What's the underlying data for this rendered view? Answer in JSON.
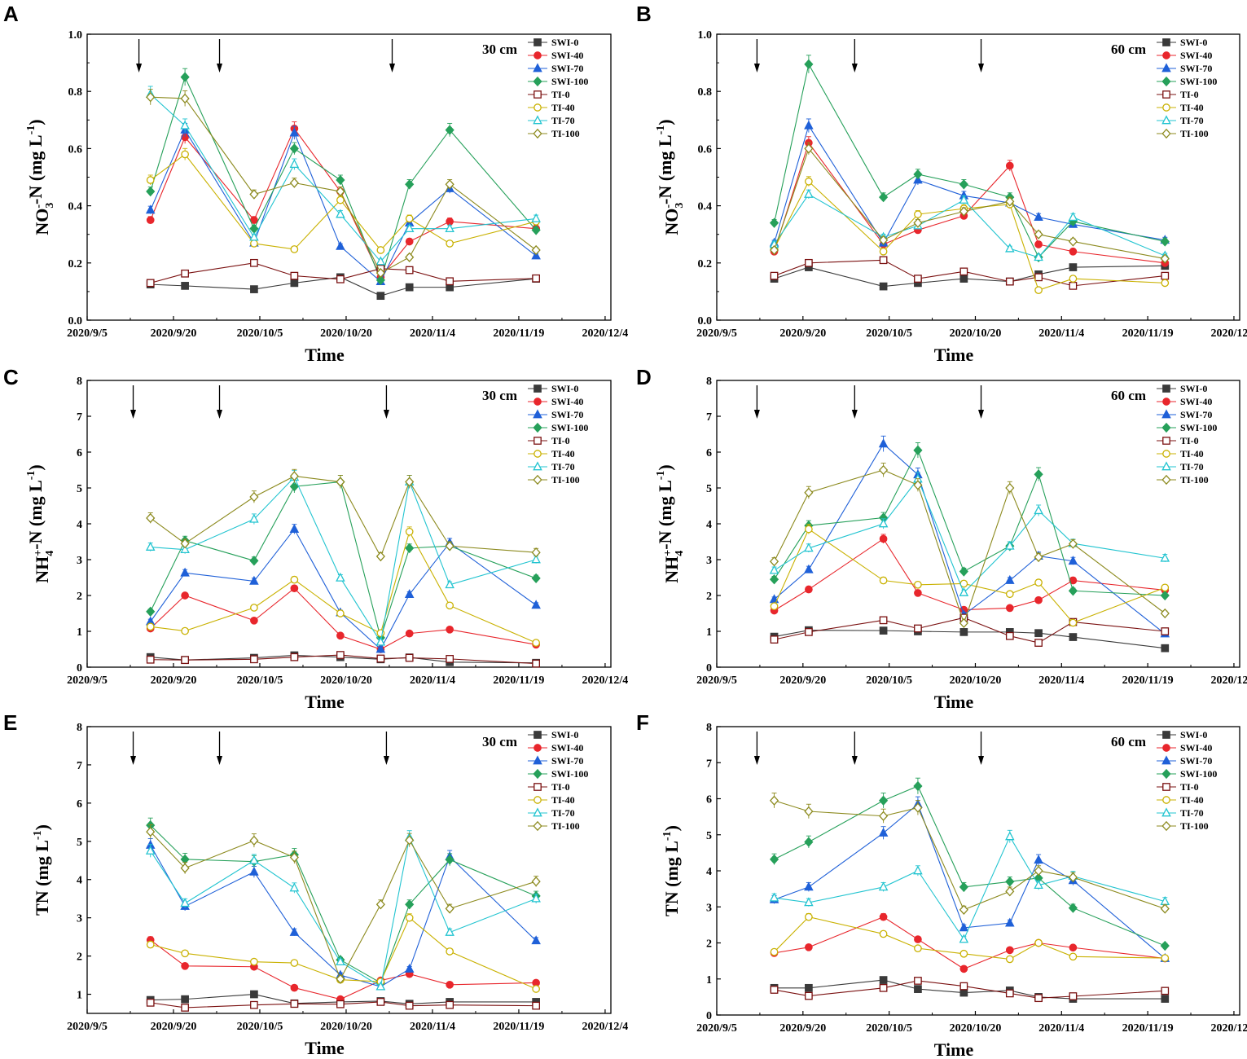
{
  "figure": {
    "x_ticks": [
      "2020/9/5",
      "2020/9/20",
      "2020/10/5",
      "2020/10/20",
      "2020/11/4",
      "2020/11/19",
      "2020/12/4"
    ]
  },
  "chart_data": [
    {
      "panel": "A",
      "type": "line",
      "depth_label": "30 cm",
      "xlabel": "Time",
      "ylabel": {
        "pre": "NO",
        "sub": "3",
        "sup": "-",
        "post": "-N (mg L",
        "unit_sup": "-1",
        "close": ")"
      },
      "ylim": [
        0,
        1.0
      ],
      "yticks": [
        0.0,
        0.2,
        0.4,
        0.6,
        0.8,
        1.0
      ],
      "xdays": [
        11,
        17,
        29,
        36,
        44,
        51,
        56,
        63,
        78
      ],
      "arrows_day": [
        9,
        23,
        53
      ],
      "series": [
        {
          "name": "SWI-0",
          "values": [
            0.125,
            0.12,
            0.108,
            0.13,
            0.15,
            0.085,
            0.115,
            0.115,
            0.145
          ]
        },
        {
          "name": "SWI-40",
          "values": [
            0.35,
            0.64,
            0.35,
            0.67,
            0.45,
            0.15,
            0.275,
            0.345,
            0.32
          ]
        },
        {
          "name": "SWI-70",
          "values": [
            0.385,
            0.665,
            0.27,
            0.655,
            0.258,
            0.135,
            0.34,
            0.46,
            0.225
          ]
        },
        {
          "name": "SWI-100",
          "values": [
            0.45,
            0.85,
            0.32,
            0.6,
            0.49,
            0.14,
            0.475,
            0.665,
            0.315
          ]
        },
        {
          "name": "TI-0",
          "values": [
            0.13,
            0.163,
            0.2,
            0.155,
            0.143,
            0.18,
            0.175,
            0.136,
            0.146
          ]
        },
        {
          "name": "TI-40",
          "values": [
            0.49,
            0.58,
            0.268,
            0.248,
            0.42,
            0.245,
            0.355,
            0.268,
            0.345
          ]
        },
        {
          "name": "TI-70",
          "values": [
            0.79,
            0.68,
            0.29,
            0.545,
            0.37,
            0.205,
            0.32,
            0.32,
            0.355
          ]
        },
        {
          "name": "TI-100",
          "values": [
            0.78,
            0.775,
            0.44,
            0.48,
            0.45,
            0.165,
            0.22,
            0.475,
            0.245
          ]
        }
      ]
    },
    {
      "panel": "B",
      "type": "line",
      "depth_label": "60 cm",
      "xlabel": "Time",
      "ylabel": {
        "pre": "NO",
        "sub": "3",
        "sup": "-",
        "post": "-N (mg L",
        "unit_sup": "-1",
        "close": ")"
      },
      "ylim": [
        0,
        1.0
      ],
      "yticks": [
        0.0,
        0.2,
        0.4,
        0.6,
        0.8,
        1.0
      ],
      "xdays": [
        10,
        16,
        29,
        35,
        43,
        51,
        56,
        62,
        78
      ],
      "arrows_day": [
        7,
        24,
        46
      ],
      "series": [
        {
          "name": "SWI-0",
          "values": [
            0.145,
            0.185,
            0.118,
            0.13,
            0.145,
            0.135,
            0.16,
            0.185,
            0.19
          ]
        },
        {
          "name": "SWI-40",
          "values": [
            0.24,
            0.62,
            0.265,
            0.315,
            0.365,
            0.54,
            0.265,
            0.24,
            0.2
          ]
        },
        {
          "name": "SWI-70",
          "values": [
            0.27,
            0.68,
            0.27,
            0.49,
            0.435,
            0.41,
            0.36,
            0.335,
            0.28
          ]
        },
        {
          "name": "SWI-100",
          "values": [
            0.34,
            0.895,
            0.43,
            0.51,
            0.475,
            0.43,
            0.22,
            0.345,
            0.275
          ]
        },
        {
          "name": "TI-0",
          "values": [
            0.155,
            0.2,
            0.21,
            0.145,
            0.17,
            0.135,
            0.15,
            0.12,
            0.155
          ]
        },
        {
          "name": "TI-40",
          "values": [
            0.25,
            0.485,
            0.24,
            0.37,
            0.39,
            0.405,
            0.105,
            0.145,
            0.13
          ]
        },
        {
          "name": "TI-70",
          "values": [
            0.265,
            0.44,
            0.29,
            0.33,
            0.42,
            0.25,
            0.22,
            0.36,
            0.225
          ]
        },
        {
          "name": "TI-100",
          "values": [
            0.245,
            0.6,
            0.28,
            0.34,
            0.38,
            0.415,
            0.3,
            0.275,
            0.215
          ]
        }
      ]
    },
    {
      "panel": "C",
      "type": "line",
      "depth_label": "30 cm",
      "xlabel": "Time",
      "ylabel": {
        "pre": "NH",
        "sub": "4",
        "sup": "+",
        "post": "-N (mg L",
        "unit_sup": "-1",
        "close": ")"
      },
      "ylim": [
        0,
        8
      ],
      "yticks": [
        0,
        1,
        2,
        3,
        4,
        5,
        6,
        7,
        8
      ],
      "xdays": [
        11,
        17,
        29,
        36,
        44,
        51,
        56,
        63,
        78
      ],
      "arrows_day": [
        8,
        23,
        52
      ],
      "series": [
        {
          "name": "SWI-0",
          "values": [
            0.28,
            0.2,
            0.26,
            0.33,
            0.28,
            0.22,
            0.27,
            0.14,
            0.12
          ]
        },
        {
          "name": "SWI-40",
          "values": [
            1.08,
            2.0,
            1.3,
            2.2,
            0.88,
            0.5,
            0.94,
            1.05,
            0.63
          ]
        },
        {
          "name": "SWI-70",
          "values": [
            1.27,
            2.63,
            2.4,
            3.85,
            1.52,
            0.5,
            2.03,
            3.47,
            1.73
          ]
        },
        {
          "name": "SWI-100",
          "values": [
            1.55,
            3.53,
            2.97,
            5.04,
            5.17,
            0.82,
            3.32,
            3.38,
            2.48
          ]
        },
        {
          "name": "TI-0",
          "values": [
            0.21,
            0.2,
            0.22,
            0.28,
            0.34,
            0.24,
            0.26,
            0.23,
            0.1
          ]
        },
        {
          "name": "TI-40",
          "values": [
            1.13,
            1.01,
            1.66,
            2.44,
            1.5,
            0.95,
            3.78,
            1.72,
            0.68
          ]
        },
        {
          "name": "TI-70",
          "values": [
            3.35,
            3.28,
            4.13,
            5.3,
            2.49,
            0.7,
            5.17,
            2.3,
            3.0
          ]
        },
        {
          "name": "TI-100",
          "values": [
            4.16,
            3.45,
            4.75,
            5.33,
            5.17,
            3.09,
            5.17,
            3.38,
            3.2
          ]
        }
      ]
    },
    {
      "panel": "D",
      "type": "line",
      "depth_label": "60 cm",
      "xlabel": "Time",
      "ylabel": {
        "pre": "NH",
        "sub": "4",
        "sup": "+",
        "post": "-N (mg L",
        "unit_sup": "-1",
        "close": ")"
      },
      "ylim": [
        0,
        8
      ],
      "yticks": [
        0,
        1,
        2,
        3,
        4,
        5,
        6,
        7,
        8
      ],
      "xdays": [
        10,
        16,
        29,
        35,
        43,
        51,
        56,
        62,
        78
      ],
      "arrows_day": [
        7,
        24,
        46
      ],
      "series": [
        {
          "name": "SWI-0",
          "values": [
            0.85,
            1.03,
            1.02,
            1.0,
            0.98,
            0.98,
            0.95,
            0.84,
            0.53
          ]
        },
        {
          "name": "SWI-40",
          "values": [
            1.58,
            2.17,
            3.58,
            2.07,
            1.6,
            1.65,
            1.87,
            2.42,
            2.15
          ]
        },
        {
          "name": "SWI-70",
          "values": [
            1.89,
            2.72,
            6.23,
            5.37,
            1.46,
            2.42,
            3.1,
            2.96,
            0.93
          ]
        },
        {
          "name": "SWI-100",
          "values": [
            2.45,
            3.95,
            4.17,
            6.05,
            2.67,
            3.38,
            5.38,
            2.13,
            2.0
          ]
        },
        {
          "name": "TI-0",
          "values": [
            0.77,
            0.98,
            1.31,
            1.08,
            1.38,
            0.87,
            0.68,
            1.26,
            1.0
          ]
        },
        {
          "name": "TI-40",
          "values": [
            1.7,
            3.85,
            2.42,
            2.3,
            2.33,
            2.04,
            2.36,
            1.24,
            2.22
          ]
        },
        {
          "name": "TI-70",
          "values": [
            2.7,
            3.32,
            4.0,
            5.25,
            2.08,
            3.38,
            4.37,
            3.45,
            3.04
          ]
        },
        {
          "name": "TI-100",
          "values": [
            2.95,
            4.87,
            5.5,
            5.08,
            1.23,
            5.0,
            3.07,
            3.44,
            1.5
          ]
        }
      ]
    },
    {
      "panel": "E",
      "type": "line",
      "depth_label": "30 cm",
      "xlabel": "Time",
      "ylabel": {
        "pre": "TN (mg L",
        "sub": "",
        "sup": "",
        "post": "",
        "unit_sup": "-1",
        "close": ")"
      },
      "ylim": [
        0.5,
        8
      ],
      "yticks": [
        1,
        2,
        3,
        4,
        5,
        6,
        7,
        8
      ],
      "xdays": [
        11,
        17,
        29,
        36,
        44,
        51,
        56,
        63,
        78
      ],
      "arrows_day": [
        8,
        23,
        52
      ],
      "series": [
        {
          "name": "SWI-0",
          "values": [
            0.85,
            0.87,
            1.0,
            0.76,
            0.8,
            0.82,
            0.75,
            0.8,
            0.8
          ]
        },
        {
          "name": "SWI-40",
          "values": [
            2.42,
            1.74,
            1.72,
            1.17,
            0.87,
            1.36,
            1.53,
            1.25,
            1.3
          ]
        },
        {
          "name": "SWI-70",
          "values": [
            4.9,
            3.3,
            4.2,
            2.62,
            1.5,
            1.2,
            1.66,
            4.6,
            2.4
          ]
        },
        {
          "name": "SWI-100",
          "values": [
            5.42,
            4.53,
            4.47,
            4.65,
            1.9,
            1.3,
            3.35,
            4.52,
            3.57
          ]
        },
        {
          "name": "TI-0",
          "values": [
            0.78,
            0.65,
            0.72,
            0.75,
            0.74,
            0.8,
            0.7,
            0.72,
            0.7
          ]
        },
        {
          "name": "TI-40",
          "values": [
            2.3,
            2.07,
            1.85,
            1.82,
            1.38,
            1.33,
            3.0,
            2.12,
            1.14
          ]
        },
        {
          "name": "TI-70",
          "values": [
            4.75,
            3.38,
            4.5,
            3.78,
            1.85,
            1.2,
            5.1,
            2.62,
            3.5
          ]
        },
        {
          "name": "TI-100",
          "values": [
            5.25,
            4.3,
            5.02,
            4.58,
            1.4,
            3.35,
            5.03,
            3.24,
            3.95
          ]
        }
      ]
    },
    {
      "panel": "F",
      "type": "line",
      "depth_label": "60 cm",
      "xlabel": "Time",
      "ylabel": {
        "pre": "TN (mg L",
        "sub": "",
        "sup": "",
        "post": "",
        "unit_sup": "-1",
        "close": ")"
      },
      "ylim": [
        0,
        8
      ],
      "yticks": [
        0,
        1,
        2,
        3,
        4,
        5,
        6,
        7,
        8
      ],
      "xdays": [
        10,
        16,
        29,
        35,
        43,
        51,
        56,
        62,
        78
      ],
      "arrows_day": [
        7,
        24,
        46
      ],
      "series": [
        {
          "name": "SWI-0",
          "values": [
            0.75,
            0.75,
            0.97,
            0.72,
            0.62,
            0.68,
            0.5,
            0.45,
            0.45
          ]
        },
        {
          "name": "SWI-40",
          "values": [
            1.72,
            1.88,
            2.72,
            2.1,
            1.28,
            1.8,
            2.0,
            1.87,
            1.57
          ]
        },
        {
          "name": "SWI-70",
          "values": [
            3.2,
            3.55,
            5.05,
            5.85,
            2.42,
            2.55,
            4.3,
            3.73,
            1.57
          ]
        },
        {
          "name": "SWI-100",
          "values": [
            4.32,
            4.8,
            5.95,
            6.35,
            3.55,
            3.7,
            3.8,
            2.97,
            1.92
          ]
        },
        {
          "name": "TI-0",
          "values": [
            0.7,
            0.53,
            0.75,
            0.95,
            0.8,
            0.6,
            0.47,
            0.52,
            0.67
          ]
        },
        {
          "name": "TI-40",
          "values": [
            1.75,
            2.72,
            2.25,
            1.85,
            1.7,
            1.55,
            2.0,
            1.62,
            1.58
          ]
        },
        {
          "name": "TI-70",
          "values": [
            3.25,
            3.12,
            3.55,
            4.0,
            2.1,
            4.95,
            3.6,
            3.85,
            3.15
          ]
        },
        {
          "name": "TI-100",
          "values": [
            5.95,
            5.65,
            5.52,
            5.75,
            2.92,
            3.43,
            4.0,
            3.82,
            2.95
          ]
        }
      ]
    }
  ]
}
